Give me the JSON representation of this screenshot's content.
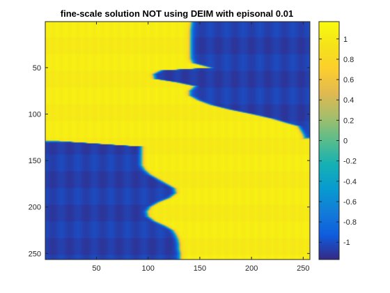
{
  "chart_data": {
    "type": "heatmap",
    "title": "fine-scale solution NOT using DEIM with episonal 0.01",
    "xlabel": "",
    "ylabel": "",
    "xlim": [
      0.5,
      256.5
    ],
    "ylim": [
      0.5,
      256.5
    ],
    "y_direction": "reverse",
    "x_ticks": [
      50,
      100,
      150,
      200,
      250
    ],
    "y_ticks": [
      50,
      100,
      150,
      200,
      250
    ],
    "colorbar": {
      "colormap": "parula",
      "clim": [
        -1.17,
        1.17
      ],
      "ticks": [
        1,
        0.8,
        0.6,
        0.4,
        0.2,
        0,
        -0.2,
        -0.4,
        -0.6,
        -0.8,
        -1
      ],
      "tick_labels": [
        "1",
        "0.8",
        "0.6",
        "0.4",
        "0.2",
        "0",
        "-0.2",
        "-0.4",
        "-0.6",
        "-0.8",
        "-1"
      ]
    },
    "grid_size": [
      256,
      256
    ],
    "field_description": "Two-phase field: value about +1 (yellow) and about -1 (dark blue), with a thin transition layer. Region value -1: upper-right block for rows <= boundary_top, lower-left block for rows >= 128 left of boundary_bottom.",
    "boundary_top": {
      "rows": [
        1,
        10,
        30,
        40,
        45,
        50,
        53,
        57,
        62,
        66,
        70,
        75,
        80,
        85,
        90,
        95,
        100,
        105,
        110,
        113,
        118,
        122,
        125
      ],
      "x": [
        142,
        141,
        141,
        141,
        143,
        160,
        112,
        105,
        106,
        128,
        145,
        140,
        140,
        148,
        160,
        178,
        200,
        220,
        235,
        245,
        248,
        250,
        251
      ]
    },
    "boundary_bottom": {
      "rows": [
        128,
        135,
        145,
        150,
        155,
        160,
        165,
        170,
        175,
        180,
        185,
        190,
        195,
        200,
        205,
        210,
        215,
        220,
        225,
        230,
        235,
        240,
        245,
        250,
        256
      ],
      "x": [
        0,
        94,
        94,
        94,
        94,
        97,
        102,
        110,
        118,
        126,
        127,
        121,
        110,
        102,
        99,
        100,
        106,
        116,
        124,
        127,
        129,
        130,
        130,
        131,
        131
      ]
    },
    "inside_value": -1.07,
    "outside_value": 1.05,
    "texture_amplitude": 0.05,
    "texture_period_columns": 16
  }
}
